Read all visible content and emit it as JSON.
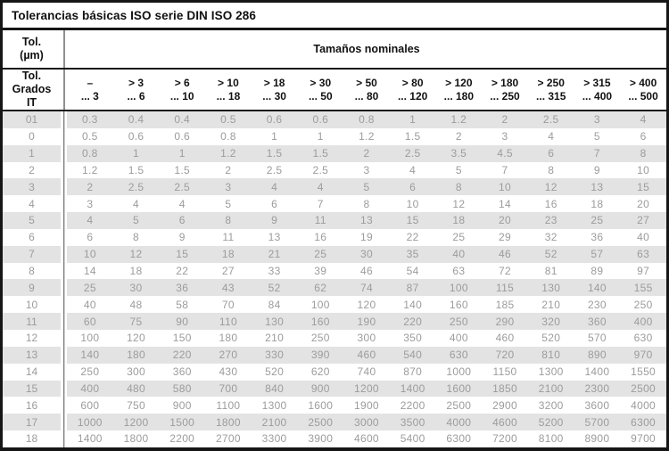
{
  "title": "Tolerancias básicas ISO serie DIN ISO 286",
  "header": {
    "tol_unit_line1": "Tol.",
    "tol_unit_line2": "(µm)",
    "sizes_title": "Tamaños nominales",
    "grades_line1": "Tol. Grados",
    "grades_line2": "IT",
    "columns": [
      {
        "top": "–",
        "bottom": "... 3"
      },
      {
        "top": "> 3",
        "bottom": "... 6"
      },
      {
        "top": "> 6",
        "bottom": "... 10"
      },
      {
        "top": "> 10",
        "bottom": "... 18"
      },
      {
        "top": "> 18",
        "bottom": "... 30"
      },
      {
        "top": "> 30",
        "bottom": "... 50"
      },
      {
        "top": "> 50",
        "bottom": "... 80"
      },
      {
        "top": "> 80",
        "bottom": "... 120"
      },
      {
        "top": "> 120",
        "bottom": "... 180"
      },
      {
        "top": "> 180",
        "bottom": "... 250"
      },
      {
        "top": "> 250",
        "bottom": "... 315"
      },
      {
        "top": "> 315",
        "bottom": "... 400"
      },
      {
        "top": "> 400",
        "bottom": "... 500"
      }
    ]
  },
  "table": {
    "rows": [
      {
        "grade": "01",
        "values": [
          "0.3",
          "0.4",
          "0.4",
          "0.5",
          "0.6",
          "0.6",
          "0.8",
          "1",
          "1.2",
          "2",
          "2.5",
          "3",
          "4"
        ]
      },
      {
        "grade": "0",
        "values": [
          "0.5",
          "0.6",
          "0.6",
          "0.8",
          "1",
          "1",
          "1.2",
          "1.5",
          "2",
          "3",
          "4",
          "5",
          "6"
        ]
      },
      {
        "grade": "1",
        "values": [
          "0.8",
          "1",
          "1",
          "1.2",
          "1.5",
          "1.5",
          "2",
          "2.5",
          "3.5",
          "4.5",
          "6",
          "7",
          "8"
        ]
      },
      {
        "grade": "2",
        "values": [
          "1.2",
          "1.5",
          "1.5",
          "2",
          "2.5",
          "2.5",
          "3",
          "4",
          "5",
          "7",
          "8",
          "9",
          "10"
        ]
      },
      {
        "grade": "3",
        "values": [
          "2",
          "2.5",
          "2.5",
          "3",
          "4",
          "4",
          "5",
          "6",
          "8",
          "10",
          "12",
          "13",
          "15"
        ]
      },
      {
        "grade": "4",
        "values": [
          "3",
          "4",
          "4",
          "5",
          "6",
          "7",
          "8",
          "10",
          "12",
          "14",
          "16",
          "18",
          "20"
        ]
      },
      {
        "grade": "5",
        "values": [
          "4",
          "5",
          "6",
          "8",
          "9",
          "11",
          "13",
          "15",
          "18",
          "20",
          "23",
          "25",
          "27"
        ]
      },
      {
        "grade": "6",
        "values": [
          "6",
          "8",
          "9",
          "11",
          "13",
          "16",
          "19",
          "22",
          "25",
          "29",
          "32",
          "36",
          "40"
        ]
      },
      {
        "grade": "7",
        "values": [
          "10",
          "12",
          "15",
          "18",
          "21",
          "25",
          "30",
          "35",
          "40",
          "46",
          "52",
          "57",
          "63"
        ]
      },
      {
        "grade": "8",
        "values": [
          "14",
          "18",
          "22",
          "27",
          "33",
          "39",
          "46",
          "54",
          "63",
          "72",
          "81",
          "89",
          "97"
        ]
      },
      {
        "grade": "9",
        "values": [
          "25",
          "30",
          "36",
          "43",
          "52",
          "62",
          "74",
          "87",
          "100",
          "115",
          "130",
          "140",
          "155"
        ]
      },
      {
        "grade": "10",
        "values": [
          "40",
          "48",
          "58",
          "70",
          "84",
          "100",
          "120",
          "140",
          "160",
          "185",
          "210",
          "230",
          "250"
        ]
      },
      {
        "grade": "11",
        "values": [
          "60",
          "75",
          "90",
          "110",
          "130",
          "160",
          "190",
          "220",
          "250",
          "290",
          "320",
          "360",
          "400"
        ]
      },
      {
        "grade": "12",
        "values": [
          "100",
          "120",
          "150",
          "180",
          "210",
          "250",
          "300",
          "350",
          "400",
          "460",
          "520",
          "570",
          "630"
        ]
      },
      {
        "grade": "13",
        "values": [
          "140",
          "180",
          "220",
          "270",
          "330",
          "390",
          "460",
          "540",
          "630",
          "720",
          "810",
          "890",
          "970"
        ]
      },
      {
        "grade": "14",
        "values": [
          "250",
          "300",
          "360",
          "430",
          "520",
          "620",
          "740",
          "870",
          "1000",
          "1150",
          "1300",
          "1400",
          "1550"
        ]
      },
      {
        "grade": "15",
        "values": [
          "400",
          "480",
          "580",
          "700",
          "840",
          "900",
          "1200",
          "1400",
          "1600",
          "1850",
          "2100",
          "2300",
          "2500"
        ]
      },
      {
        "grade": "16",
        "values": [
          "600",
          "750",
          "900",
          "1100",
          "1300",
          "1600",
          "1900",
          "2200",
          "2500",
          "2900",
          "3200",
          "3600",
          "4000"
        ]
      },
      {
        "grade": "17",
        "values": [
          "1000",
          "1200",
          "1500",
          "1800",
          "2100",
          "2500",
          "3000",
          "3500",
          "4000",
          "4600",
          "5200",
          "5700",
          "6300"
        ]
      },
      {
        "grade": "18",
        "values": [
          "1400",
          "1800",
          "2200",
          "2700",
          "3300",
          "3900",
          "4600",
          "5400",
          "6300",
          "7200",
          "8100",
          "8900",
          "9700"
        ]
      }
    ]
  },
  "colors": {
    "stripe": "#e3e3e3",
    "data_text": "#9c9c9c",
    "border": "#161616",
    "header_divider": "#909090",
    "body_divider": "#4f4f4f"
  }
}
